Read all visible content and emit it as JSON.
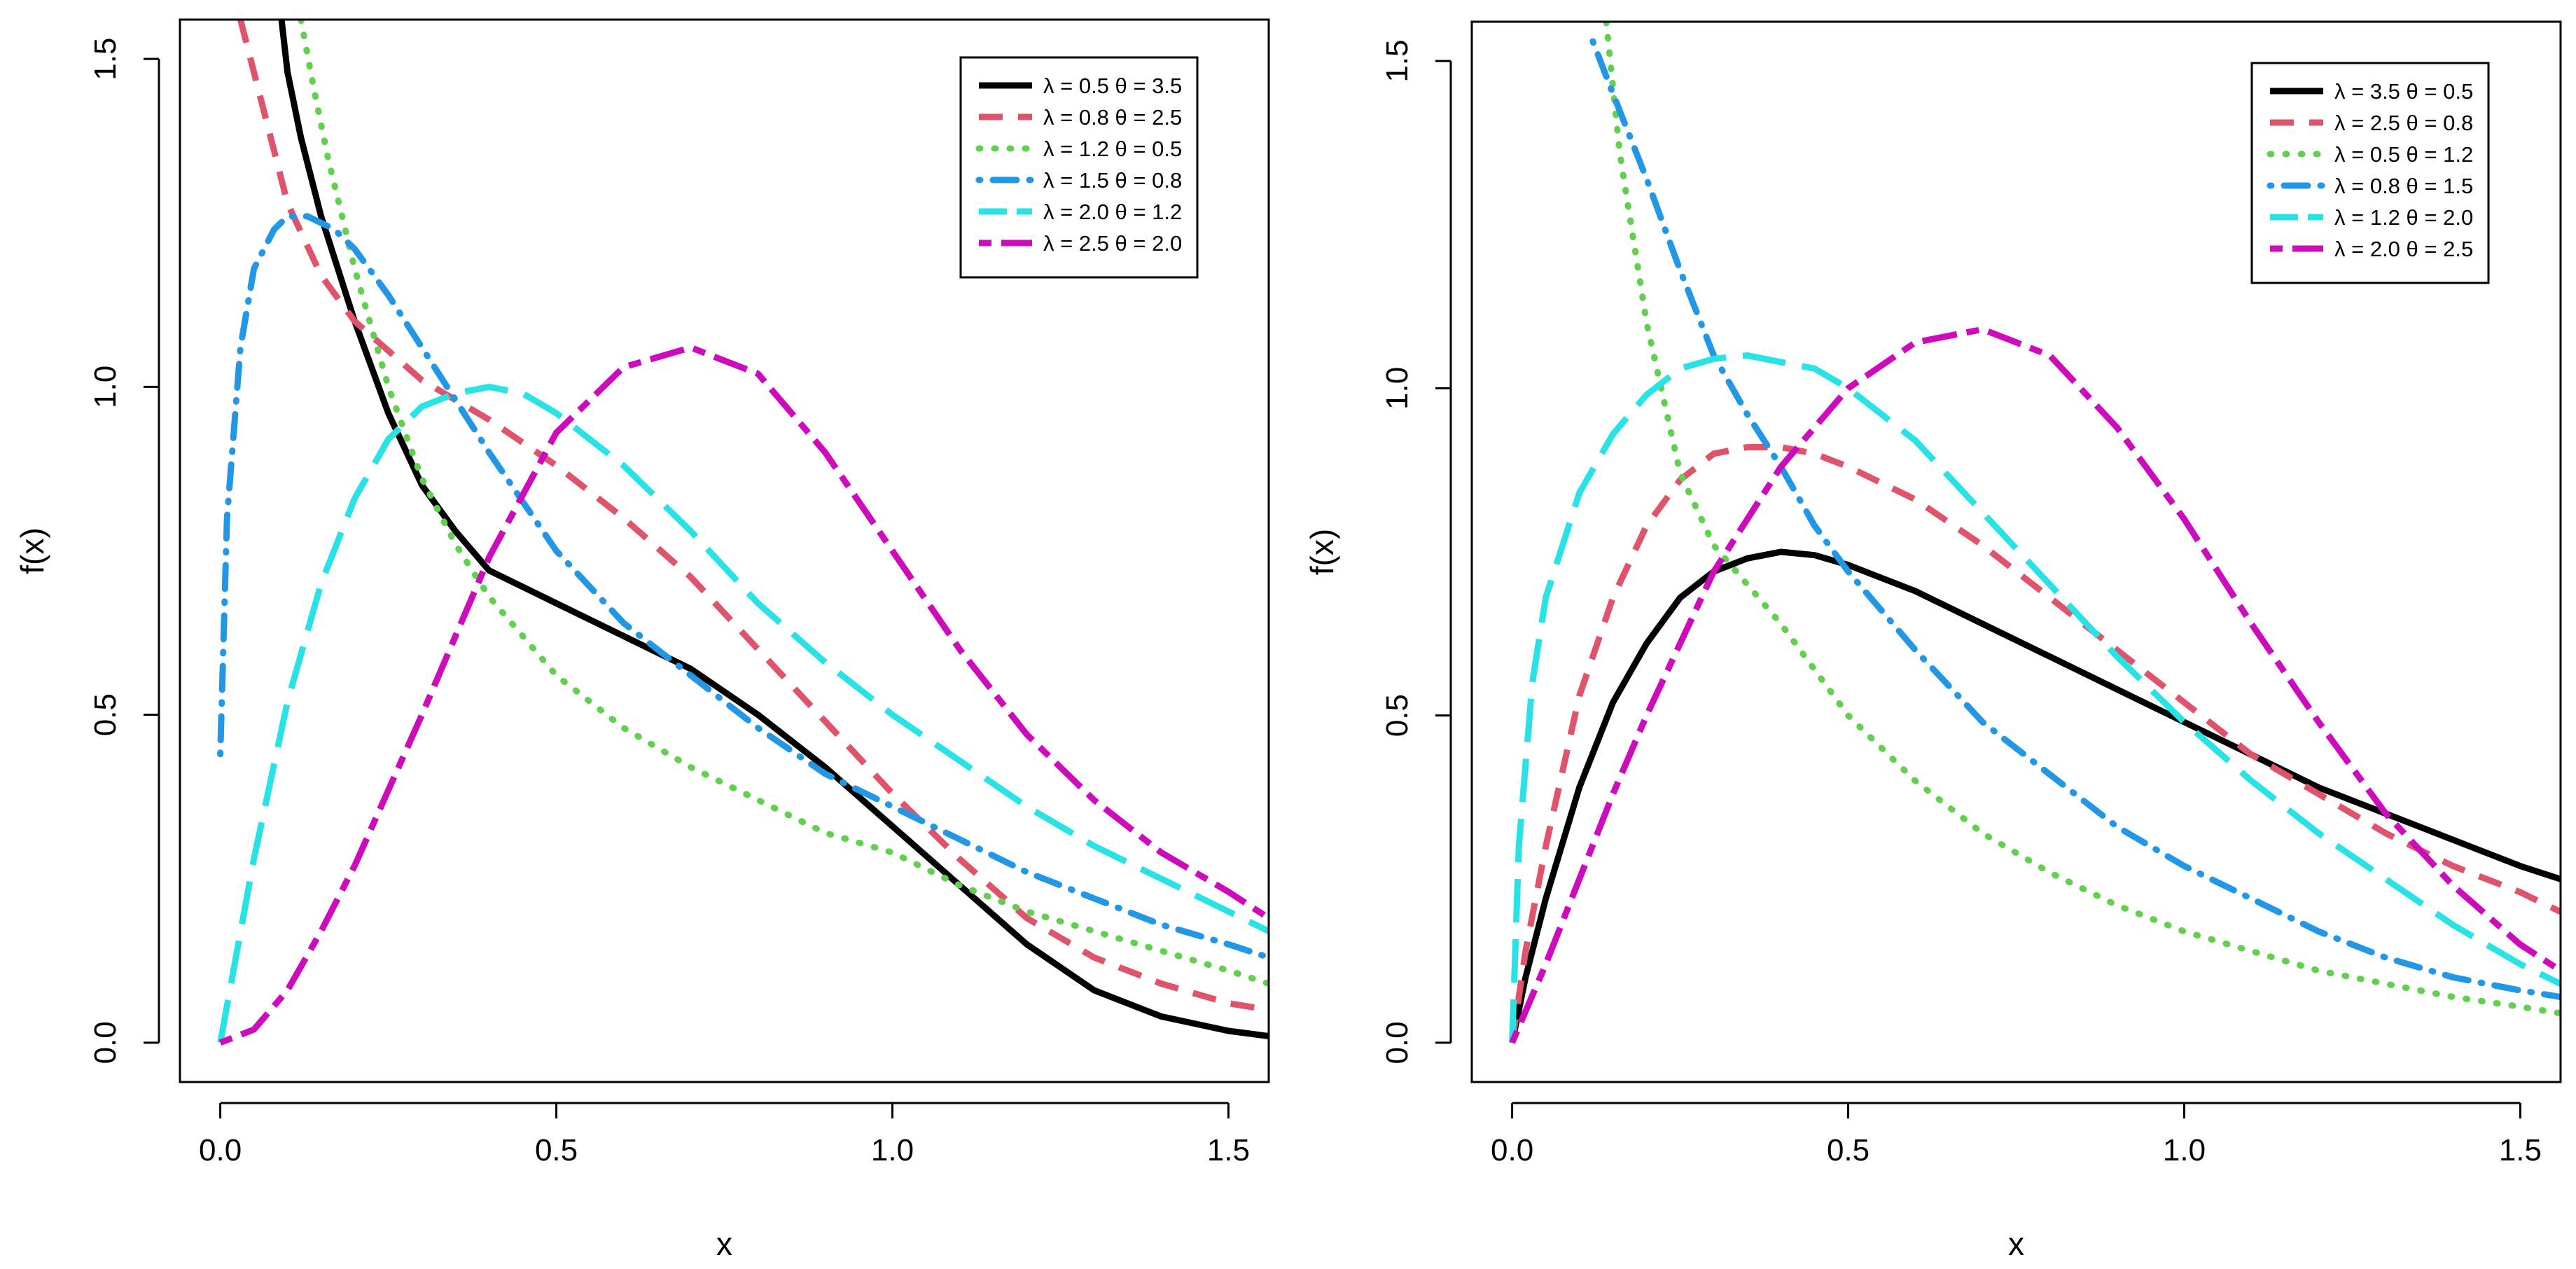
{
  "chart_data": [
    {
      "type": "line",
      "title": "",
      "xlabel": "x",
      "ylabel": "f(x)",
      "xlim": [
        -0.06,
        1.56
      ],
      "ylim": [
        -0.06,
        1.56
      ],
      "xticks": [
        0.0,
        0.5,
        1.0,
        1.5
      ],
      "xtick_labels": [
        "0.0",
        "0.5",
        "1.0",
        "1.5"
      ],
      "yticks": [
        0.0,
        0.5,
        1.0,
        1.5
      ],
      "ytick_labels": [
        "0.0",
        "0.5",
        "1.0",
        "1.5"
      ],
      "legend_position": "top-right",
      "series": [
        {
          "name": "λ = 0.5  θ = 3.5",
          "color": "#000000",
          "style": "solid",
          "x": [
            0.09,
            0.1,
            0.12,
            0.15,
            0.2,
            0.25,
            0.3,
            0.35,
            0.4,
            0.5,
            0.6,
            0.7,
            0.8,
            0.9,
            1.0,
            1.1,
            1.2,
            1.3,
            1.4,
            1.5,
            1.56
          ],
          "y": [
            1.57,
            1.48,
            1.38,
            1.26,
            1.1,
            0.96,
            0.85,
            0.78,
            0.72,
            0.67,
            0.62,
            0.57,
            0.5,
            0.42,
            0.33,
            0.24,
            0.15,
            0.08,
            0.04,
            0.018,
            0.01
          ]
        },
        {
          "name": "λ = 0.8  θ = 2.5",
          "color": "#df536b",
          "style": "dashed",
          "x": [
            0.03,
            0.05,
            0.08,
            0.1,
            0.15,
            0.2,
            0.3,
            0.4,
            0.5,
            0.6,
            0.7,
            0.8,
            0.9,
            1.0,
            1.1,
            1.2,
            1.3,
            1.4,
            1.5,
            1.56
          ],
          "y": [
            1.56,
            1.48,
            1.36,
            1.28,
            1.17,
            1.1,
            1.01,
            0.95,
            0.88,
            0.8,
            0.71,
            0.6,
            0.49,
            0.38,
            0.28,
            0.19,
            0.13,
            0.09,
            0.06,
            0.05
          ]
        },
        {
          "name": "λ = 1.2  θ = 0.5",
          "color": "#61d04f",
          "style": "dotted",
          "x": [
            0.12,
            0.14,
            0.16,
            0.2,
            0.25,
            0.3,
            0.35,
            0.4,
            0.5,
            0.6,
            0.7,
            0.8,
            0.9,
            1.0,
            1.1,
            1.2,
            1.3,
            1.4,
            1.5,
            1.56
          ],
          "y": [
            1.56,
            1.45,
            1.35,
            1.18,
            1.0,
            0.86,
            0.76,
            0.68,
            0.56,
            0.48,
            0.42,
            0.37,
            0.32,
            0.29,
            0.24,
            0.2,
            0.17,
            0.14,
            0.11,
            0.09
          ]
        },
        {
          "name": "λ = 1.5  θ = 0.8",
          "color": "#2297e6",
          "style": "dotdash",
          "x": [
            0.0,
            0.01,
            0.03,
            0.05,
            0.08,
            0.1,
            0.13,
            0.17,
            0.2,
            0.25,
            0.3,
            0.4,
            0.5,
            0.6,
            0.7,
            0.8,
            0.9,
            1.0,
            1.1,
            1.2,
            1.3,
            1.4,
            1.5,
            1.56
          ],
          "y": [
            0.44,
            0.8,
            1.06,
            1.18,
            1.24,
            1.26,
            1.26,
            1.24,
            1.21,
            1.14,
            1.06,
            0.9,
            0.75,
            0.64,
            0.56,
            0.48,
            0.41,
            0.36,
            0.31,
            0.26,
            0.22,
            0.18,
            0.15,
            0.13
          ]
        },
        {
          "name": "λ = 2.0  θ = 1.2",
          "color": "#28e2e5",
          "style": "longdash",
          "x": [
            0.0,
            0.05,
            0.1,
            0.15,
            0.2,
            0.25,
            0.3,
            0.35,
            0.4,
            0.45,
            0.5,
            0.6,
            0.7,
            0.8,
            0.9,
            1.0,
            1.1,
            1.2,
            1.3,
            1.4,
            1.5,
            1.56
          ],
          "y": [
            0.0,
            0.28,
            0.52,
            0.7,
            0.83,
            0.92,
            0.97,
            0.99,
            1.0,
            0.99,
            0.96,
            0.88,
            0.78,
            0.67,
            0.58,
            0.5,
            0.43,
            0.36,
            0.3,
            0.25,
            0.2,
            0.17
          ]
        },
        {
          "name": "λ = 2.5  θ = 2.0",
          "color": "#cd0bbc",
          "style": "twodash",
          "x": [
            0.0,
            0.05,
            0.1,
            0.15,
            0.2,
            0.3,
            0.4,
            0.5,
            0.6,
            0.7,
            0.8,
            0.9,
            1.0,
            1.1,
            1.2,
            1.3,
            1.4,
            1.5,
            1.56
          ],
          "y": [
            0.0,
            0.02,
            0.08,
            0.17,
            0.27,
            0.5,
            0.74,
            0.93,
            1.03,
            1.06,
            1.02,
            0.9,
            0.75,
            0.6,
            0.47,
            0.37,
            0.29,
            0.23,
            0.19
          ]
        }
      ]
    },
    {
      "type": "line",
      "title": "",
      "xlabel": "x",
      "ylabel": "f(x)",
      "xlim": [
        -0.06,
        1.56
      ],
      "ylim": [
        -0.06,
        1.56
      ],
      "xticks": [
        0.0,
        0.5,
        1.0,
        1.5
      ],
      "xtick_labels": [
        "0.0",
        "0.5",
        "1.0",
        "1.5"
      ],
      "yticks": [
        0.0,
        0.5,
        1.0,
        1.5
      ],
      "ytick_labels": [
        "0.0",
        "0.5",
        "1.0",
        "1.5"
      ],
      "legend_position": "top-right",
      "series": [
        {
          "name": "λ = 3.5  θ = 0.5",
          "color": "#000000",
          "style": "solid",
          "x": [
            0.0,
            0.02,
            0.05,
            0.1,
            0.15,
            0.2,
            0.25,
            0.3,
            0.35,
            0.4,
            0.45,
            0.5,
            0.6,
            0.7,
            0.8,
            0.9,
            1.0,
            1.1,
            1.2,
            1.3,
            1.4,
            1.5,
            1.56
          ],
          "y": [
            0.0,
            0.1,
            0.22,
            0.39,
            0.52,
            0.61,
            0.68,
            0.72,
            0.74,
            0.75,
            0.745,
            0.73,
            0.69,
            0.64,
            0.59,
            0.54,
            0.49,
            0.44,
            0.39,
            0.35,
            0.31,
            0.27,
            0.25
          ]
        },
        {
          "name": "λ = 2.5  θ = 0.8",
          "color": "#df536b",
          "style": "dashed",
          "x": [
            0.0,
            0.02,
            0.05,
            0.1,
            0.15,
            0.2,
            0.25,
            0.3,
            0.35,
            0.4,
            0.45,
            0.5,
            0.6,
            0.7,
            0.8,
            0.9,
            1.0,
            1.1,
            1.2,
            1.3,
            1.4,
            1.5,
            1.56
          ],
          "y": [
            0.0,
            0.14,
            0.3,
            0.53,
            0.68,
            0.79,
            0.86,
            0.9,
            0.91,
            0.91,
            0.9,
            0.88,
            0.83,
            0.76,
            0.68,
            0.6,
            0.52,
            0.44,
            0.38,
            0.32,
            0.27,
            0.23,
            0.2
          ]
        },
        {
          "name": "λ = 0.5  θ = 1.2",
          "color": "#61d04f",
          "style": "dotted",
          "x": [
            0.14,
            0.16,
            0.2,
            0.25,
            0.3,
            0.35,
            0.4,
            0.5,
            0.6,
            0.7,
            0.8,
            0.9,
            1.0,
            1.1,
            1.2,
            1.3,
            1.4,
            1.5,
            1.56
          ],
          "y": [
            1.56,
            1.36,
            1.1,
            0.87,
            0.76,
            0.7,
            0.64,
            0.5,
            0.4,
            0.32,
            0.26,
            0.21,
            0.17,
            0.14,
            0.11,
            0.09,
            0.07,
            0.055,
            0.045
          ]
        },
        {
          "name": "λ = 0.8  θ = 1.5",
          "color": "#2297e6",
          "style": "dotdash",
          "x": [
            0.12,
            0.15,
            0.2,
            0.25,
            0.3,
            0.35,
            0.4,
            0.45,
            0.5,
            0.6,
            0.7,
            0.8,
            0.9,
            1.0,
            1.1,
            1.2,
            1.3,
            1.4,
            1.5,
            1.56
          ],
          "y": [
            1.53,
            1.45,
            1.32,
            1.18,
            1.05,
            0.96,
            0.88,
            0.79,
            0.72,
            0.6,
            0.49,
            0.41,
            0.33,
            0.27,
            0.22,
            0.17,
            0.13,
            0.1,
            0.08,
            0.07
          ]
        },
        {
          "name": "λ = 1.2  θ = 2.0",
          "color": "#28e2e5",
          "style": "longdash",
          "x": [
            0.0,
            0.01,
            0.03,
            0.05,
            0.1,
            0.15,
            0.2,
            0.25,
            0.3,
            0.35,
            0.4,
            0.45,
            0.5,
            0.6,
            0.7,
            0.8,
            0.9,
            1.0,
            1.1,
            1.2,
            1.3,
            1.4,
            1.5,
            1.56
          ],
          "y": [
            0.0,
            0.3,
            0.55,
            0.68,
            0.84,
            0.93,
            0.99,
            1.03,
            1.045,
            1.05,
            1.04,
            1.03,
            1.0,
            0.92,
            0.81,
            0.7,
            0.59,
            0.49,
            0.4,
            0.32,
            0.25,
            0.18,
            0.12,
            0.09
          ]
        },
        {
          "name": "λ = 2.0  θ = 2.5",
          "color": "#cd0bbc",
          "style": "twodash",
          "x": [
            0.0,
            0.05,
            0.1,
            0.15,
            0.2,
            0.3,
            0.4,
            0.5,
            0.6,
            0.7,
            0.8,
            0.9,
            1.0,
            1.1,
            1.2,
            1.3,
            1.4,
            1.5,
            1.56
          ],
          "y": [
            0.0,
            0.12,
            0.25,
            0.38,
            0.5,
            0.72,
            0.88,
            1.0,
            1.07,
            1.09,
            1.05,
            0.94,
            0.8,
            0.64,
            0.49,
            0.35,
            0.24,
            0.15,
            0.11
          ]
        }
      ]
    }
  ]
}
